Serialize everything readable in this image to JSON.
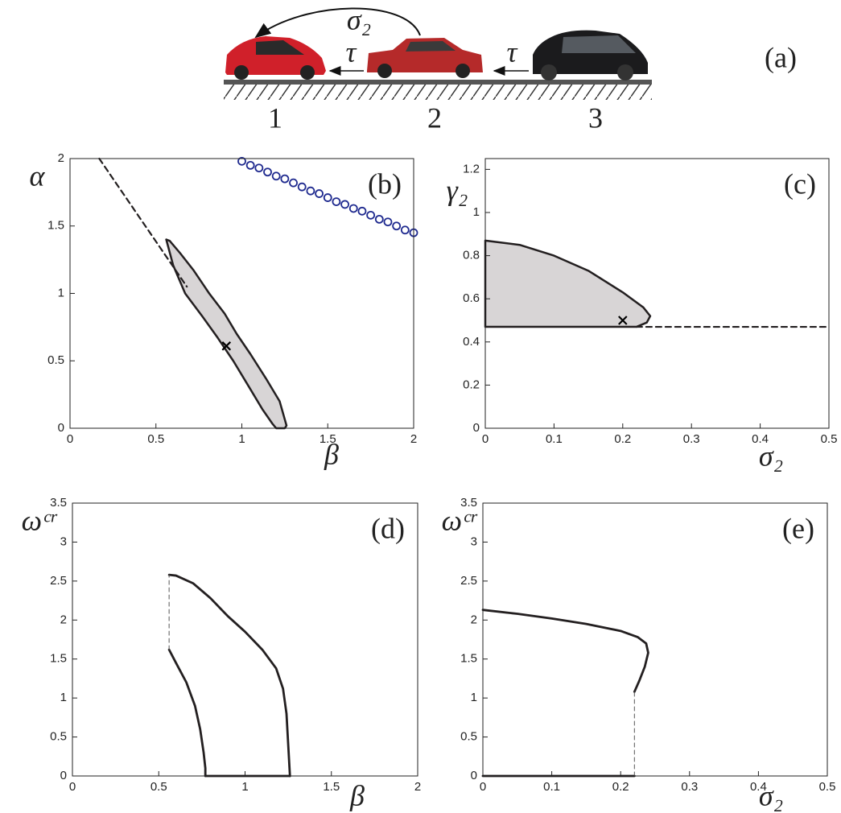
{
  "diagram": {
    "label": "(a)",
    "influence": "σ₂",
    "delay": [
      "τ",
      "τ"
    ],
    "cars": [
      "1",
      "2",
      "3"
    ]
  },
  "chart_data": [
    {
      "type": "line",
      "annotation": "(b)",
      "x_label": "β",
      "y_label": "α",
      "xlim": [
        0,
        2
      ],
      "ylim": [
        0,
        2
      ],
      "xticks": [
        0,
        0.5,
        1,
        1.5,
        2
      ],
      "yticks": [
        0,
        0.5,
        1,
        1.5,
        2
      ],
      "series": [
        {
          "color": "#231f20",
          "fill": "#d8d5d6",
          "width": 2.5,
          "x": [
            0.56,
            0.6,
            0.67,
            0.77,
            0.86,
            0.95,
            1.04,
            1.12,
            1.18,
            1.2,
            1.25,
            1.26,
            1.22,
            1.14,
            1.05,
            0.97,
            0.9,
            0.81,
            0.72,
            0.64,
            0.58,
            0.56
          ],
          "values": [
            1.4,
            1.21,
            1.0,
            0.83,
            0.67,
            0.5,
            0.31,
            0.14,
            0.03,
            0,
            0,
            0.02,
            0.2,
            0.37,
            0.55,
            0.7,
            0.85,
            1.0,
            1.17,
            1.3,
            1.39,
            1.4
          ]
        },
        {
          "color": "#231f20",
          "dash": true,
          "width": 2.2,
          "x": [
            0.17,
            0.68
          ],
          "values": [
            2,
            1.05
          ]
        },
        {
          "color": "#1f2a8f",
          "marker": "circle",
          "x": [
            1.0,
            1.05,
            1.1,
            1.15,
            1.2,
            1.25,
            1.3,
            1.35,
            1.4,
            1.45,
            1.5,
            1.55,
            1.6,
            1.65,
            1.7,
            1.75,
            1.8,
            1.85,
            1.9,
            1.95,
            2.0
          ],
          "values": [
            1.98,
            1.95,
            1.93,
            1.9,
            1.87,
            1.85,
            1.82,
            1.79,
            1.76,
            1.74,
            1.71,
            1.68,
            1.66,
            1.63,
            1.61,
            1.58,
            1.55,
            1.53,
            1.5,
            1.47,
            1.45
          ]
        },
        {
          "color": "#000000",
          "marker": "cross",
          "x": [
            0.91
          ],
          "values": [
            0.61
          ]
        }
      ]
    },
    {
      "type": "line",
      "annotation": "(c)",
      "x_label": "σ₂",
      "y_label": "γ₂",
      "xlim": [
        0,
        0.5
      ],
      "ylim": [
        0,
        1.25
      ],
      "xticks": [
        0,
        0.1,
        0.2,
        0.3,
        0.4,
        0.5
      ],
      "yticks": [
        0,
        0.2,
        0.4,
        0.6,
        0.8,
        1,
        1.2
      ],
      "series": [
        {
          "color": "#231f20",
          "fill": "#d8d5d6",
          "width": 2.5,
          "x": [
            0,
            0.05,
            0.1,
            0.15,
            0.2,
            0.23,
            0.24,
            0.235,
            0.22,
            0,
            0
          ],
          "values": [
            0.87,
            0.85,
            0.8,
            0.73,
            0.63,
            0.56,
            0.52,
            0.49,
            0.47,
            0.47,
            0.87
          ]
        },
        {
          "color": "#231f20",
          "dash": true,
          "width": 2.2,
          "x": [
            0.22,
            0.5
          ],
          "values": [
            0.47,
            0.47
          ]
        },
        {
          "color": "#000000",
          "marker": "cross",
          "x": [
            0.2
          ],
          "values": [
            0.5
          ]
        }
      ]
    },
    {
      "type": "line",
      "annotation": "(d)",
      "x_label": "β",
      "y_label": "ωᶜʳ",
      "xlim": [
        0,
        2
      ],
      "ylim": [
        0,
        3.5
      ],
      "xticks": [
        0,
        0.5,
        1,
        1.5,
        2
      ],
      "yticks": [
        0,
        0.5,
        1,
        1.5,
        2,
        2.5,
        3,
        3.5
      ],
      "series": [
        {
          "color": "#231f20",
          "width": 2.8,
          "x": [
            0.56,
            0.6,
            0.7,
            0.8,
            0.9,
            1.0,
            1.1,
            1.18,
            1.22,
            1.24,
            1.25,
            1.26
          ],
          "values": [
            2.58,
            2.57,
            2.47,
            2.28,
            2.05,
            1.85,
            1.62,
            1.38,
            1.12,
            0.8,
            0.4,
            0
          ]
        },
        {
          "color": "#231f20",
          "width": 2.8,
          "x": [
            0.56,
            0.6,
            0.66,
            0.71,
            0.74,
            0.76,
            0.77,
            0.77
          ],
          "values": [
            1.62,
            1.45,
            1.2,
            0.9,
            0.6,
            0.3,
            0.1,
            0
          ]
        },
        {
          "color": "#231f20",
          "width": 2.8,
          "x": [
            0.77,
            1.26
          ],
          "values": [
            0,
            0
          ]
        },
        {
          "color": "#555555",
          "dash": true,
          "width": 1,
          "x": [
            0.56,
            0.56
          ],
          "values": [
            1.62,
            2.58
          ]
        }
      ]
    },
    {
      "type": "line",
      "annotation": "(e)",
      "x_label": "σ₂",
      "y_label": "ωᶜʳ",
      "xlim": [
        0,
        0.5
      ],
      "ylim": [
        0,
        3.5
      ],
      "xticks": [
        0,
        0.1,
        0.2,
        0.3,
        0.4,
        0.5
      ],
      "yticks": [
        0,
        0.5,
        1,
        1.5,
        2,
        2.5,
        3,
        3.5
      ],
      "series": [
        {
          "color": "#231f20",
          "width": 2.8,
          "x": [
            0,
            0.05,
            0.1,
            0.15,
            0.2,
            0.225,
            0.237,
            0.24,
            0.235,
            0.227,
            0.22
          ],
          "values": [
            2.13,
            2.08,
            2.02,
            1.95,
            1.86,
            1.78,
            1.7,
            1.58,
            1.4,
            1.22,
            1.08
          ]
        },
        {
          "color": "#231f20",
          "width": 2.8,
          "x": [
            0,
            0.22
          ],
          "values": [
            0,
            0
          ]
        },
        {
          "color": "#555555",
          "dash": true,
          "width": 1,
          "x": [
            0.22,
            0.22
          ],
          "values": [
            0,
            1.08
          ]
        }
      ]
    }
  ]
}
